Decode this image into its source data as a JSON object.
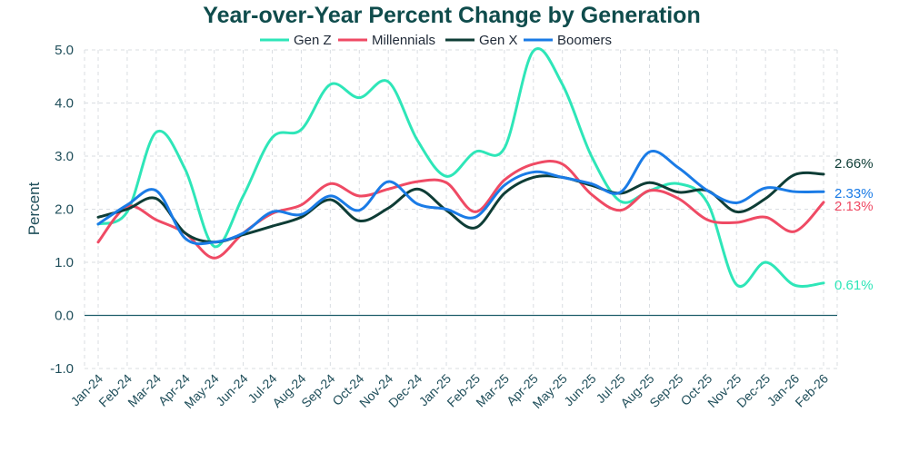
{
  "chart_data": {
    "type": "line",
    "title": "Year-over-Year Percent Change by Generation",
    "xlabel": "",
    "ylabel": "Percent",
    "ylim": [
      -1.0,
      5.0
    ],
    "yticks": [
      -1.0,
      0.0,
      1.0,
      2.0,
      3.0,
      4.0,
      5.0
    ],
    "ytick_labels": [
      "-1.0",
      "0.0",
      "1.0",
      "2.0",
      "3.0",
      "4.0",
      "5.0"
    ],
    "grid": true,
    "legend_position": "top",
    "categories": [
      "Jan-24",
      "Feb-24",
      "Mar-24",
      "Apr-24",
      "May-24",
      "Jun-24",
      "Jul-24",
      "Aug-24",
      "Sep-24",
      "Oct-24",
      "Nov-24",
      "Dec-24",
      "Jan-25",
      "Feb-25",
      "Mar-25",
      "Apr-25",
      "May-25",
      "Jun-25",
      "Jul-25",
      "Aug-25",
      "Sep-25",
      "Oct-25",
      "Nov-25",
      "Dec-25",
      "Jan-26",
      "Feb-26"
    ],
    "series": [
      {
        "name": "Gen Z",
        "color": "#2ee6b8",
        "end_label": "0.61%",
        "values": [
          1.72,
          1.95,
          3.45,
          2.75,
          1.3,
          2.25,
          3.35,
          3.5,
          4.35,
          4.1,
          4.4,
          3.3,
          2.62,
          3.08,
          3.15,
          4.98,
          4.35,
          3.0,
          2.15,
          2.35,
          2.48,
          2.12,
          0.58,
          1.0,
          0.57,
          0.61
        ]
      },
      {
        "name": "Millennials",
        "color": "#ef4a64",
        "end_label": "2.13%",
        "values": [
          1.38,
          2.05,
          1.8,
          1.55,
          1.08,
          1.55,
          1.92,
          2.08,
          2.48,
          2.25,
          2.38,
          2.52,
          2.5,
          1.95,
          2.55,
          2.85,
          2.85,
          2.28,
          1.98,
          2.35,
          2.2,
          1.8,
          1.75,
          1.85,
          1.58,
          2.13
        ]
      },
      {
        "name": "Gen X",
        "color": "#0e3d36",
        "end_label": "2.66%",
        "values": [
          1.85,
          2.0,
          2.2,
          1.55,
          1.38,
          1.52,
          1.68,
          1.85,
          2.18,
          1.78,
          2.02,
          2.38,
          1.98,
          1.65,
          2.3,
          2.6,
          2.6,
          2.45,
          2.3,
          2.5,
          2.32,
          2.35,
          1.95,
          2.2,
          2.65,
          2.66
        ]
      },
      {
        "name": "Boomers",
        "color": "#1a7be6",
        "end_label": "2.33%",
        "values": [
          1.72,
          2.08,
          2.35,
          1.45,
          1.38,
          1.55,
          1.95,
          1.9,
          2.25,
          1.98,
          2.52,
          2.1,
          2.0,
          1.85,
          2.45,
          2.7,
          2.6,
          2.48,
          2.32,
          3.08,
          2.78,
          2.35,
          2.12,
          2.4,
          2.33,
          2.33
        ]
      }
    ]
  }
}
